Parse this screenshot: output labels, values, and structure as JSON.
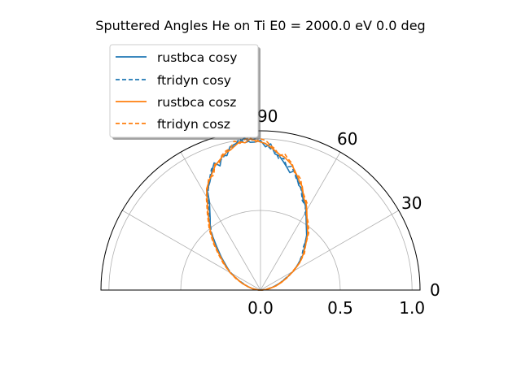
{
  "chart_data": {
    "type": "polar-half",
    "title": "Sputtered Angles He on Ti E0 = 2000.0 eV 0.0 deg",
    "angle_ticks": [
      "0",
      "30",
      "60",
      "90"
    ],
    "radius_ticks": [
      "0.0",
      "0.5",
      "1.0"
    ],
    "rlim": [
      0,
      1.0
    ],
    "grid": true,
    "legend_position": "upper-left",
    "colors": {
      "blue": "#1f77b4",
      "orange": "#ff7f0e"
    },
    "series": [
      {
        "name": "rustbca cosy",
        "color": "#1f77b4",
        "style": "solid",
        "angles": [
          2,
          5,
          10,
          15,
          20,
          25,
          30,
          35,
          40,
          45,
          50,
          55,
          60,
          62,
          65,
          68,
          70,
          72,
          74,
          76,
          78,
          80,
          82,
          84,
          86,
          88,
          90,
          92,
          94,
          96,
          98,
          100,
          102,
          104,
          106,
          108,
          110,
          112,
          115,
          118,
          120,
          125,
          130,
          135,
          140,
          145,
          150,
          155,
          160,
          165,
          170,
          175,
          178
        ],
        "r": [
          0.01,
          0.03,
          0.06,
          0.09,
          0.13,
          0.18,
          0.24,
          0.29,
          0.35,
          0.39,
          0.45,
          0.5,
          0.57,
          0.6,
          0.63,
          0.69,
          0.7,
          0.74,
          0.78,
          0.76,
          0.79,
          0.82,
          0.85,
          0.86,
          0.92,
          0.9,
          0.94,
          0.93,
          0.93,
          0.96,
          0.94,
          0.93,
          0.92,
          0.87,
          0.88,
          0.82,
          0.85,
          0.81,
          0.75,
          0.71,
          0.64,
          0.55,
          0.49,
          0.39,
          0.32,
          0.26,
          0.22,
          0.16,
          0.12,
          0.08,
          0.05,
          0.02,
          0.01
        ]
      },
      {
        "name": "ftridyn cosy",
        "color": "#1f77b4",
        "style": "dashed",
        "angles": [
          2,
          5,
          10,
          15,
          20,
          25,
          30,
          35,
          40,
          45,
          50,
          55,
          60,
          62,
          65,
          68,
          70,
          72,
          74,
          76,
          78,
          80,
          82,
          84,
          86,
          88,
          90,
          92,
          94,
          96,
          98,
          100,
          102,
          104,
          106,
          108,
          110,
          112,
          115,
          118,
          120,
          125,
          130,
          135,
          140,
          145,
          150,
          155,
          160,
          165,
          170,
          175,
          178
        ],
        "r": [
          0.01,
          0.03,
          0.05,
          0.09,
          0.13,
          0.17,
          0.24,
          0.29,
          0.34,
          0.38,
          0.46,
          0.51,
          0.56,
          0.6,
          0.62,
          0.68,
          0.71,
          0.73,
          0.77,
          0.8,
          0.79,
          0.84,
          0.83,
          0.88,
          0.89,
          0.92,
          0.93,
          0.95,
          0.94,
          0.93,
          0.96,
          0.92,
          0.91,
          0.89,
          0.86,
          0.85,
          0.83,
          0.82,
          0.76,
          0.7,
          0.66,
          0.56,
          0.48,
          0.4,
          0.33,
          0.27,
          0.21,
          0.16,
          0.11,
          0.08,
          0.05,
          0.02,
          0.01
        ]
      },
      {
        "name": "rustbca cosz",
        "color": "#ff7f0e",
        "style": "solid",
        "angles": [
          2,
          5,
          10,
          15,
          20,
          25,
          30,
          35,
          40,
          45,
          50,
          55,
          60,
          62,
          65,
          68,
          70,
          72,
          74,
          76,
          78,
          80,
          82,
          84,
          86,
          88,
          90,
          92,
          94,
          96,
          98,
          100,
          102,
          104,
          106,
          108,
          110,
          112,
          115,
          118,
          120,
          125,
          130,
          135,
          140,
          145,
          150,
          155,
          160,
          165,
          170,
          175,
          178
        ],
        "r": [
          0.01,
          0.03,
          0.06,
          0.1,
          0.14,
          0.18,
          0.24,
          0.3,
          0.35,
          0.4,
          0.46,
          0.51,
          0.58,
          0.61,
          0.64,
          0.7,
          0.72,
          0.75,
          0.78,
          0.81,
          0.83,
          0.85,
          0.86,
          0.88,
          0.9,
          0.92,
          0.93,
          0.94,
          0.95,
          0.93,
          0.94,
          0.92,
          0.9,
          0.89,
          0.87,
          0.85,
          0.83,
          0.8,
          0.76,
          0.72,
          0.67,
          0.57,
          0.49,
          0.41,
          0.33,
          0.27,
          0.22,
          0.16,
          0.12,
          0.08,
          0.05,
          0.02,
          0.01
        ]
      },
      {
        "name": "ftridyn cosz",
        "color": "#ff7f0e",
        "style": "dashed",
        "angles": [
          2,
          5,
          10,
          15,
          20,
          25,
          30,
          35,
          40,
          45,
          50,
          55,
          60,
          62,
          65,
          68,
          70,
          72,
          74,
          76,
          78,
          80,
          82,
          84,
          86,
          88,
          90,
          92,
          94,
          96,
          98,
          100,
          102,
          104,
          106,
          108,
          110,
          112,
          115,
          118,
          120,
          125,
          130,
          135,
          140,
          145,
          150,
          155,
          160,
          165,
          170,
          175,
          178
        ],
        "r": [
          0.01,
          0.03,
          0.05,
          0.1,
          0.13,
          0.19,
          0.23,
          0.3,
          0.36,
          0.4,
          0.47,
          0.52,
          0.57,
          0.62,
          0.65,
          0.69,
          0.74,
          0.76,
          0.77,
          0.82,
          0.84,
          0.87,
          0.85,
          0.89,
          0.91,
          0.94,
          0.95,
          0.93,
          0.96,
          0.95,
          0.93,
          0.95,
          0.91,
          0.9,
          0.88,
          0.84,
          0.84,
          0.78,
          0.77,
          0.71,
          0.68,
          0.58,
          0.5,
          0.42,
          0.34,
          0.28,
          0.22,
          0.17,
          0.12,
          0.08,
          0.05,
          0.02,
          0.01
        ]
      }
    ]
  }
}
